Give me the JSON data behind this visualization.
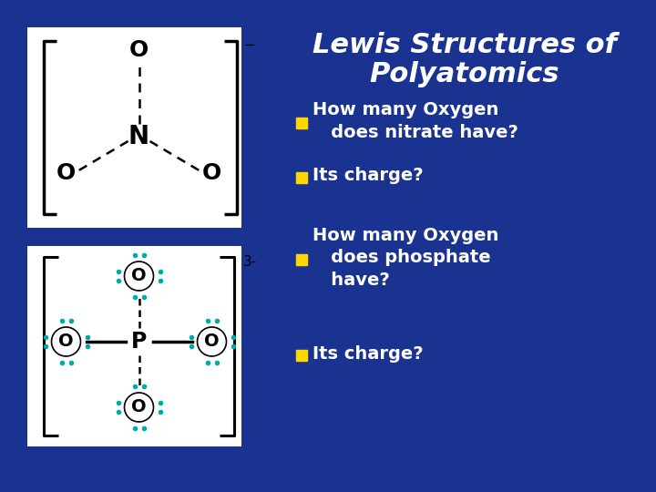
{
  "title_line1": "Lewis Structures of",
  "title_line2": "Polyatomics",
  "title_color": "#FFFFFF",
  "title_fontsize": 22,
  "background_color": "#1a3391",
  "bullet_color": "#FFD700",
  "text_color": "#FFFFFF",
  "bullet_fontsize": 14,
  "bullets": [
    "How many Oxygen\n   does nitrate have?",
    "Its charge?",
    "How many Oxygen\n   does phosphate\n   have?",
    "Its charge?"
  ],
  "dot_color": "#00AAAA",
  "bracket_color": "#000000"
}
